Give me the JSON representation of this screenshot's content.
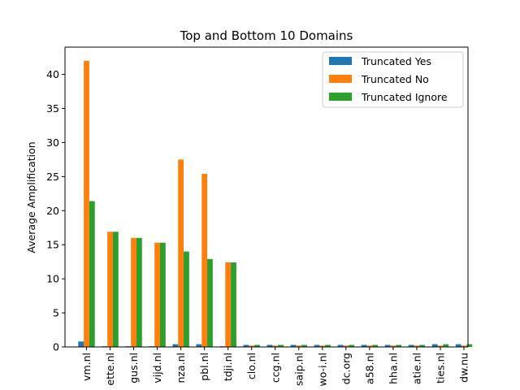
{
  "chart_data": {
    "type": "bar",
    "title": "Top and Bottom 10 Domains",
    "xlabel": "",
    "ylabel": "Average Amplification",
    "ylim": [
      0,
      44
    ],
    "yticks": [
      0,
      5,
      10,
      15,
      20,
      25,
      30,
      35,
      40
    ],
    "grid": false,
    "legend_position": "top-right",
    "categories": [
      "vm.nl",
      "ette.nl",
      "gus.nl",
      "vijd.nl",
      "nza.nl",
      "pbl.nl",
      "tdji.nl",
      "clo.nl",
      "ccg.nl",
      "saip.nl",
      "wo-i.nl",
      "dc.org",
      "a58.nl",
      "hha.nl",
      "atie.nl",
      "ties.nl",
      "dw.nu"
    ],
    "series": [
      {
        "name": "Truncated Yes",
        "color": "#1f77b4",
        "values": [
          0.8,
          0.1,
          0.1,
          0.1,
          0.4,
          0.4,
          0.1,
          0.3,
          0.3,
          0.3,
          0.3,
          0.3,
          0.3,
          0.3,
          0.3,
          0.4,
          0.4
        ]
      },
      {
        "name": "Truncated No",
        "color": "#ff7f0e",
        "values": [
          42.0,
          16.9,
          16.0,
          15.3,
          27.5,
          25.4,
          12.4,
          0.2,
          0.2,
          0.2,
          0.2,
          0.2,
          0.2,
          0.2,
          0.2,
          0.2,
          0.2
        ]
      },
      {
        "name": "Truncated Ignore",
        "color": "#2ca02c",
        "values": [
          21.4,
          16.9,
          16.0,
          15.3,
          14.0,
          12.9,
          12.4,
          0.3,
          0.3,
          0.3,
          0.3,
          0.3,
          0.3,
          0.3,
          0.3,
          0.4,
          0.4
        ]
      }
    ]
  }
}
